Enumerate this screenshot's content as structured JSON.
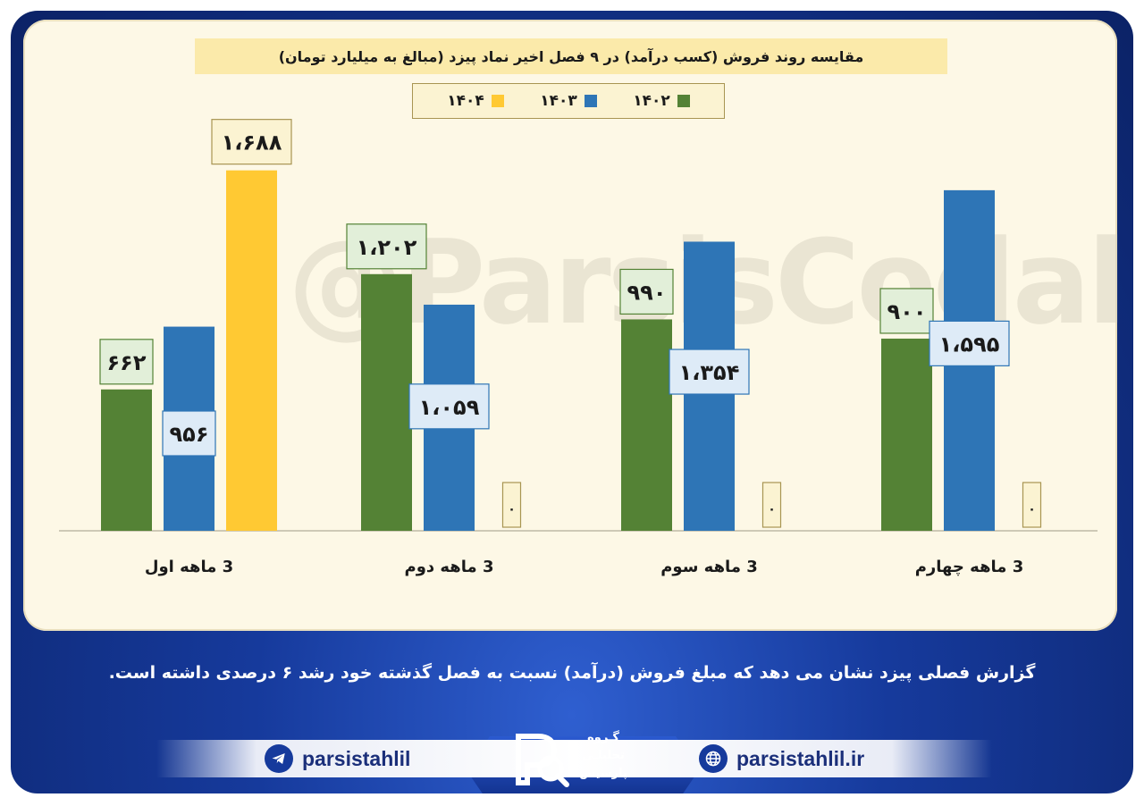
{
  "title": "مقایسه روند فروش (کسب درآمد) در ۹ فصل اخیر نماد پیزد (مبالغ به میلیارد تومان)",
  "watermark": "@ParsisCodal",
  "caption": "گزارش فصلی پیزد نشان می دهد که مبلغ فروش (درآمد) نسبت به فصل گذشته خود رشد ۶ درصدی داشته است.",
  "footer": {
    "telegram_handle": "parsistahlil",
    "website": "parsistahlil.ir",
    "logo_lines": [
      "گـروه",
      "تحلیلـی",
      "پارسیس"
    ],
    "telegram_icon": "telegram-icon",
    "web_icon": "globe-icon"
  },
  "colors": {
    "1402": "#548235",
    "1403": "#2e75b6",
    "1404": "#ffc933"
  },
  "chart_data": {
    "type": "bar",
    "categories": [
      "3 ماهه اول",
      "3 ماهه دوم",
      "3 ماهه سوم",
      "3 ماهه چهارم"
    ],
    "series": [
      {
        "name": "۱۴۰۲",
        "values": [
          662,
          1202,
          990,
          900
        ],
        "labels": [
          "۶۶۲",
          "۱،۲۰۲",
          "۹۹۰",
          "۹۰۰"
        ]
      },
      {
        "name": "۱۴۰۳",
        "values": [
          956,
          1059,
          1354,
          1595
        ],
        "labels": [
          "۹۵۶",
          "۱،۰۵۹",
          "۱،۳۵۴",
          "۱،۵۹۵"
        ]
      },
      {
        "name": "۱۴۰۴",
        "values": [
          1688,
          0,
          0,
          0
        ],
        "labels": [
          "۱،۶۸۸",
          "۰",
          "۰",
          "۰"
        ]
      }
    ],
    "ylim": [
      0,
      1900
    ],
    "grid": false,
    "legend": "top-center"
  }
}
